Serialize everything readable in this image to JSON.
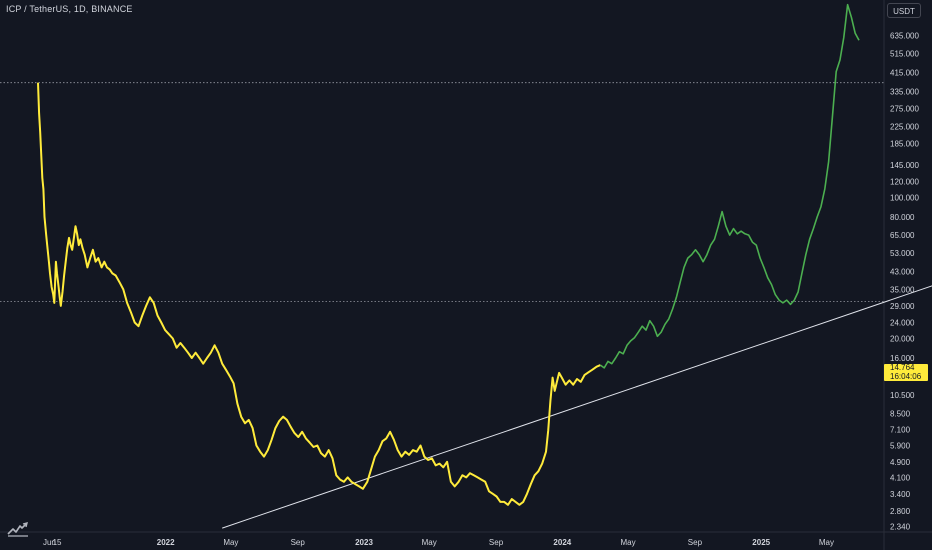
{
  "header": {
    "symbol": "ICP / TetherUS, 1D, BINANCE",
    "currency": "USDT"
  },
  "price_badge": {
    "price": "14.764",
    "countdown": "16:04:06",
    "color": "#ffeb3b"
  },
  "colors": {
    "background": "#131722",
    "history_line": "#ffeb3b",
    "projection_line": "#4caf50",
    "trendline": "#e0e3eb",
    "axis_text": "#d1d4dc",
    "hline": "#9598a1"
  },
  "brand": {
    "logo_icon": "tradingview-logo-icon"
  },
  "chart_data": {
    "type": "line",
    "scale": "log",
    "title": "",
    "xlabel": "",
    "ylabel": "",
    "ylim": [
      2.2,
      950
    ],
    "x_ticks": [
      {
        "label": "Jun",
        "date": "2021-06-01"
      },
      {
        "label": "15",
        "date": "2021-06-15"
      },
      {
        "label": "2022",
        "date": "2022-01-01"
      },
      {
        "label": "May",
        "date": "2022-05-01"
      },
      {
        "label": "Sep",
        "date": "2022-09-01"
      },
      {
        "label": "2023",
        "date": "2023-01-01"
      },
      {
        "label": "May",
        "date": "2023-05-01"
      },
      {
        "label": "Sep",
        "date": "2023-09-01"
      },
      {
        "label": "2024",
        "date": "2024-01-01"
      },
      {
        "label": "May",
        "date": "2024-05-01"
      },
      {
        "label": "Sep",
        "date": "2024-09-01"
      },
      {
        "label": "2025",
        "date": "2025-01-01"
      },
      {
        "label": "May",
        "date": "2025-05-01"
      }
    ],
    "y_ticks": [
      "635.000",
      "515.000",
      "415.000",
      "335.000",
      "275.000",
      "225.000",
      "185.000",
      "145.000",
      "120.000",
      "100.000",
      "80.000",
      "65.000",
      "53.000",
      "43.000",
      "35.000",
      "29.000",
      "24.000",
      "20.000",
      "16.000",
      "10.500",
      "8.500",
      "7.100",
      "5.900",
      "4.900",
      "4.100",
      "3.400",
      "2.800",
      "2.340"
    ],
    "horizontal_lines": [
      370,
      30.5
    ],
    "trendline": {
      "start": [
        "2022-04-15",
        2.3
      ],
      "end": [
        "2025-12-01",
        38
      ]
    },
    "series": [
      {
        "points": [
          [
            "2021-05-11",
            370
          ],
          [
            "2021-05-13",
            260
          ],
          [
            "2021-05-15",
            210
          ],
          [
            "2021-05-17",
            160
          ],
          [
            "2021-05-19",
            125
          ],
          [
            "2021-05-21",
            110
          ],
          [
            "2021-05-23",
            80
          ],
          [
            "2021-05-26",
            65
          ],
          [
            "2021-05-28",
            58
          ],
          [
            "2021-05-31",
            48
          ],
          [
            "2021-06-02",
            42
          ],
          [
            "2021-06-05",
            36
          ],
          [
            "2021-06-08",
            33
          ],
          [
            "2021-06-10",
            30
          ],
          [
            "2021-06-13",
            48
          ],
          [
            "2021-06-15",
            42
          ],
          [
            "2021-06-18",
            36
          ],
          [
            "2021-06-20",
            32
          ],
          [
            "2021-06-22",
            29
          ],
          [
            "2021-06-25",
            34
          ],
          [
            "2021-06-28",
            41
          ],
          [
            "2021-07-01",
            48
          ],
          [
            "2021-07-04",
            56
          ],
          [
            "2021-07-07",
            63
          ],
          [
            "2021-07-10",
            58
          ],
          [
            "2021-07-13",
            55
          ],
          [
            "2021-07-16",
            63
          ],
          [
            "2021-07-19",
            72
          ],
          [
            "2021-07-22",
            66
          ],
          [
            "2021-07-25",
            58
          ],
          [
            "2021-07-28",
            62
          ],
          [
            "2021-08-01",
            56
          ],
          [
            "2021-08-05",
            52
          ],
          [
            "2021-08-10",
            45
          ],
          [
            "2021-08-15",
            50
          ],
          [
            "2021-08-20",
            55
          ],
          [
            "2021-08-25",
            48
          ],
          [
            "2021-08-30",
            50
          ],
          [
            "2021-09-05",
            45
          ],
          [
            "2021-09-10",
            48
          ],
          [
            "2021-09-15",
            45
          ],
          [
            "2021-09-20",
            44
          ],
          [
            "2021-09-25",
            42
          ],
          [
            "2021-10-01",
            41
          ],
          [
            "2021-10-08",
            38
          ],
          [
            "2021-10-15",
            35
          ],
          [
            "2021-10-22",
            30
          ],
          [
            "2021-10-29",
            27
          ],
          [
            "2021-11-05",
            24
          ],
          [
            "2021-11-12",
            23
          ],
          [
            "2021-11-19",
            26
          ],
          [
            "2021-11-26",
            29
          ],
          [
            "2021-12-03",
            32
          ],
          [
            "2021-12-10",
            30
          ],
          [
            "2021-12-17",
            26
          ],
          [
            "2021-12-24",
            24
          ],
          [
            "2021-12-31",
            22
          ],
          [
            "2022-01-07",
            21
          ],
          [
            "2022-01-14",
            20
          ],
          [
            "2022-01-21",
            18
          ],
          [
            "2022-01-28",
            19
          ],
          [
            "2022-02-04",
            18
          ],
          [
            "2022-02-11",
            17
          ],
          [
            "2022-02-18",
            16
          ],
          [
            "2022-02-25",
            17
          ],
          [
            "2022-03-04",
            16
          ],
          [
            "2022-03-11",
            15
          ],
          [
            "2022-03-18",
            16
          ],
          [
            "2022-03-25",
            17
          ],
          [
            "2022-04-01",
            18.5
          ],
          [
            "2022-04-08",
            17
          ],
          [
            "2022-04-15",
            15
          ],
          [
            "2022-04-22",
            14
          ],
          [
            "2022-04-29",
            13
          ],
          [
            "2022-05-06",
            12
          ],
          [
            "2022-05-13",
            9.5
          ],
          [
            "2022-05-20",
            8.2
          ],
          [
            "2022-05-27",
            7.6
          ],
          [
            "2022-06-03",
            7.9
          ],
          [
            "2022-06-10",
            7.2
          ],
          [
            "2022-06-17",
            5.9
          ],
          [
            "2022-06-24",
            5.5
          ],
          [
            "2022-07-01",
            5.2
          ],
          [
            "2022-07-08",
            5.6
          ],
          [
            "2022-07-15",
            6.3
          ],
          [
            "2022-07-22",
            7.2
          ],
          [
            "2022-07-29",
            7.8
          ],
          [
            "2022-08-05",
            8.2
          ],
          [
            "2022-08-12",
            7.9
          ],
          [
            "2022-08-19",
            7.3
          ],
          [
            "2022-08-26",
            6.8
          ],
          [
            "2022-09-02",
            6.5
          ],
          [
            "2022-09-09",
            6.9
          ],
          [
            "2022-09-16",
            6.4
          ],
          [
            "2022-09-23",
            6.1
          ],
          [
            "2022-09-30",
            5.8
          ],
          [
            "2022-10-07",
            5.9
          ],
          [
            "2022-10-14",
            5.4
          ],
          [
            "2022-10-21",
            5.2
          ],
          [
            "2022-10-28",
            5.6
          ],
          [
            "2022-11-04",
            5.1
          ],
          [
            "2022-11-11",
            4.2
          ],
          [
            "2022-11-18",
            4.0
          ],
          [
            "2022-11-25",
            3.9
          ],
          [
            "2022-12-02",
            4.1
          ],
          [
            "2022-12-09",
            3.9
          ],
          [
            "2022-12-16",
            3.8
          ],
          [
            "2022-12-23",
            3.7
          ],
          [
            "2022-12-30",
            3.6
          ],
          [
            "2023-01-07",
            3.9
          ],
          [
            "2023-01-14",
            4.5
          ],
          [
            "2023-01-21",
            5.2
          ],
          [
            "2023-01-28",
            5.6
          ],
          [
            "2023-02-04",
            6.2
          ],
          [
            "2023-02-11",
            6.4
          ],
          [
            "2023-02-18",
            6.9
          ],
          [
            "2023-02-25",
            6.3
          ],
          [
            "2023-03-04",
            5.6
          ],
          [
            "2023-03-11",
            5.2
          ],
          [
            "2023-03-18",
            5.5
          ],
          [
            "2023-03-25",
            5.3
          ],
          [
            "2023-04-01",
            5.6
          ],
          [
            "2023-04-08",
            5.5
          ],
          [
            "2023-04-15",
            5.9
          ],
          [
            "2023-04-22",
            5.2
          ],
          [
            "2023-04-29",
            5.0
          ],
          [
            "2023-05-06",
            5.1
          ],
          [
            "2023-05-13",
            4.7
          ],
          [
            "2023-05-20",
            4.8
          ],
          [
            "2023-05-27",
            4.6
          ],
          [
            "2023-06-03",
            4.9
          ],
          [
            "2023-06-10",
            3.9
          ],
          [
            "2023-06-17",
            3.7
          ],
          [
            "2023-06-24",
            3.9
          ],
          [
            "2023-07-01",
            4.2
          ],
          [
            "2023-07-08",
            4.1
          ],
          [
            "2023-07-15",
            4.3
          ],
          [
            "2023-07-22",
            4.2
          ],
          [
            "2023-07-29",
            4.1
          ],
          [
            "2023-08-05",
            4.0
          ],
          [
            "2023-08-12",
            3.9
          ],
          [
            "2023-08-19",
            3.5
          ],
          [
            "2023-08-26",
            3.4
          ],
          [
            "2023-09-02",
            3.3
          ],
          [
            "2023-09-09",
            3.1
          ],
          [
            "2023-09-16",
            3.1
          ],
          [
            "2023-09-23",
            3.0
          ],
          [
            "2023-09-30",
            3.2
          ],
          [
            "2023-10-07",
            3.1
          ],
          [
            "2023-10-14",
            3.0
          ],
          [
            "2023-10-21",
            3.1
          ],
          [
            "2023-10-28",
            3.4
          ],
          [
            "2023-11-04",
            3.8
          ],
          [
            "2023-11-11",
            4.2
          ],
          [
            "2023-11-18",
            4.4
          ],
          [
            "2023-11-25",
            4.8
          ],
          [
            "2023-12-02",
            5.5
          ],
          [
            "2023-12-06",
            7.0
          ],
          [
            "2023-12-10",
            9.8
          ],
          [
            "2023-12-14",
            12.8
          ],
          [
            "2023-12-18",
            11.0
          ],
          [
            "2023-12-22",
            12.2
          ],
          [
            "2023-12-26",
            13.5
          ],
          [
            "2023-12-31",
            12.8
          ],
          [
            "2024-01-07",
            11.8
          ],
          [
            "2024-01-14",
            12.4
          ],
          [
            "2024-01-21",
            11.8
          ],
          [
            "2024-01-28",
            12.6
          ],
          [
            "2024-02-04",
            12.2
          ],
          [
            "2024-02-11",
            13.2
          ],
          [
            "2024-02-18",
            13.6
          ],
          [
            "2024-02-25",
            14.0
          ],
          [
            "2024-03-04",
            14.5
          ],
          [
            "2024-03-11",
            14.764
          ]
        ]
      },
      {
        "points": [
          [
            "2024-03-11",
            14.764
          ],
          [
            "2024-03-18",
            14.3
          ],
          [
            "2024-03-25",
            15.4
          ],
          [
            "2024-04-01",
            15.0
          ],
          [
            "2024-04-08",
            16.0
          ],
          [
            "2024-04-15",
            17.2
          ],
          [
            "2024-04-22",
            16.8
          ],
          [
            "2024-04-29",
            18.5
          ],
          [
            "2024-05-06",
            19.5
          ],
          [
            "2024-05-13",
            20.2
          ],
          [
            "2024-05-20",
            21.5
          ],
          [
            "2024-05-27",
            23.0
          ],
          [
            "2024-06-03",
            22.0
          ],
          [
            "2024-06-10",
            24.5
          ],
          [
            "2024-06-17",
            23.0
          ],
          [
            "2024-06-24",
            20.5
          ],
          [
            "2024-07-01",
            21.5
          ],
          [
            "2024-07-08",
            23.5
          ],
          [
            "2024-07-15",
            25.0
          ],
          [
            "2024-07-22",
            28.0
          ],
          [
            "2024-07-29",
            32.0
          ],
          [
            "2024-08-05",
            38.0
          ],
          [
            "2024-08-12",
            45.0
          ],
          [
            "2024-08-19",
            50.0
          ],
          [
            "2024-08-26",
            52.0
          ],
          [
            "2024-09-02",
            55.0
          ],
          [
            "2024-09-09",
            52.0
          ],
          [
            "2024-09-16",
            48.0
          ],
          [
            "2024-09-23",
            52.0
          ],
          [
            "2024-09-30",
            58.0
          ],
          [
            "2024-10-07",
            62.0
          ],
          [
            "2024-10-14",
            72.0
          ],
          [
            "2024-10-21",
            85.0
          ],
          [
            "2024-10-28",
            72.0
          ],
          [
            "2024-11-04",
            65.0
          ],
          [
            "2024-11-11",
            70.0
          ],
          [
            "2024-11-18",
            66.0
          ],
          [
            "2024-11-25",
            68.0
          ],
          [
            "2024-12-02",
            66.0
          ],
          [
            "2024-12-09",
            65.0
          ],
          [
            "2024-12-16",
            60.0
          ],
          [
            "2024-12-23",
            58.0
          ],
          [
            "2024-12-30",
            50.0
          ],
          [
            "2025-01-06",
            45.0
          ],
          [
            "2025-01-13",
            40.0
          ],
          [
            "2025-01-20",
            37.0
          ],
          [
            "2025-01-27",
            33.0
          ],
          [
            "2025-02-03",
            31.0
          ],
          [
            "2025-02-10",
            30.0
          ],
          [
            "2025-02-17",
            31.0
          ],
          [
            "2025-02-24",
            29.5
          ],
          [
            "2025-03-03",
            31.0
          ],
          [
            "2025-03-10",
            34.0
          ],
          [
            "2025-03-17",
            42.0
          ],
          [
            "2025-03-24",
            52.0
          ],
          [
            "2025-03-31",
            62.0
          ],
          [
            "2025-04-07",
            70.0
          ],
          [
            "2025-04-14",
            80.0
          ],
          [
            "2025-04-21",
            90.0
          ],
          [
            "2025-04-28",
            110.0
          ],
          [
            "2025-05-05",
            150.0
          ],
          [
            "2025-05-12",
            250.0
          ],
          [
            "2025-05-19",
            420.0
          ],
          [
            "2025-05-26",
            480.0
          ],
          [
            "2025-06-02",
            620.0
          ],
          [
            "2025-06-09",
            900.0
          ],
          [
            "2025-06-16",
            780.0
          ],
          [
            "2025-06-23",
            650.0
          ],
          [
            "2025-06-30",
            600.0
          ]
        ]
      }
    ]
  }
}
